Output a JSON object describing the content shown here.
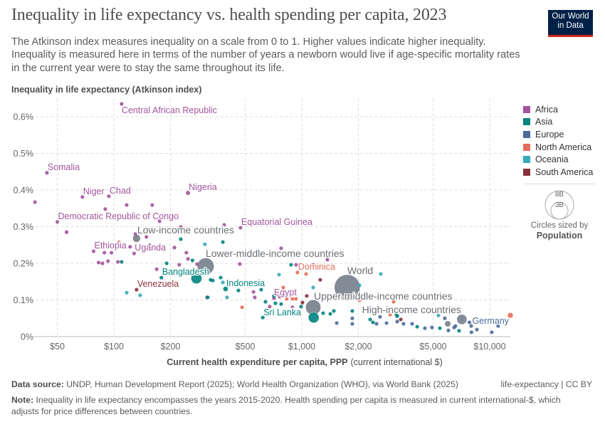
{
  "header": {
    "title": "Inequality in life expectancy vs. health spending per capita, 2023",
    "subtitle": "The Atkinson index measures inequality on a scale from 0 to 1. Higher values indicate higher inequality. Inequality is measured here in terms of the number of years a newborn would live if age-specific mortality rates in the current year were to stay the same throughout its life.",
    "logo": "Our World in Data"
  },
  "legend": {
    "items": [
      {
        "label": "Africa",
        "color": "#a2559c"
      },
      {
        "label": "Asia",
        "color": "#00847e"
      },
      {
        "label": "Europe",
        "color": "#4c6a9c"
      },
      {
        "label": "North America",
        "color": "#e56e5a"
      },
      {
        "label": "Oceania",
        "color": "#38aaba"
      },
      {
        "label": "South America",
        "color": "#883039"
      }
    ],
    "size_big": "8B",
    "size_small": "3B",
    "size_caption": "Circles sized by",
    "size_variable": "Population"
  },
  "footer": {
    "source_label": "Data source:",
    "source": "UNDP, Human Development Report (2025); World Health Organization (WHO), via World Bank (2025)",
    "license": "life-expectancy | CC BY",
    "note_label": "Note:",
    "note": "Inequality in life expectancy encompasses the years 2015-2020. Health spending per capita is measured in current international-$, which adjusts for price differences between countries."
  },
  "chart_data": {
    "type": "scatter",
    "title": "Inequality in life expectancy vs. health spending per capita, 2023",
    "ylabel": "Inequality in life expectancy (Atkinson index)",
    "xlabel_bold": "Current health expenditure per capita, PPP",
    "xlabel_unit": "(current international $)",
    "xscale": "log",
    "xlim": [
      34,
      12900
    ],
    "ylim": [
      0,
      0.65
    ],
    "grid": true,
    "legend_position": "right",
    "aggregate_color": "#6d7785",
    "x_ticks": [
      {
        "v": 50,
        "label": "$50"
      },
      {
        "v": 100,
        "label": "$100"
      },
      {
        "v": 200,
        "label": "$200"
      },
      {
        "v": 500,
        "label": "$500"
      },
      {
        "v": 1000,
        "label": "$1,000"
      },
      {
        "v": 2000,
        "label": "$2,000"
      },
      {
        "v": 5000,
        "label": "$5,000"
      },
      {
        "v": 10000,
        "label": "$10,000"
      }
    ],
    "y_ticks": [
      {
        "v": 0,
        "label": "0%"
      },
      {
        "v": 0.1,
        "label": "0.1%"
      },
      {
        "v": 0.2,
        "label": "0.2%"
      },
      {
        "v": 0.3,
        "label": "0.3%"
      },
      {
        "v": 0.4,
        "label": "0.4%"
      },
      {
        "v": 0.5,
        "label": "0.5%"
      },
      {
        "v": 0.6,
        "label": "0.6%"
      }
    ],
    "points": [
      {
        "label": "World",
        "region": "",
        "x": 1745,
        "y": 0.134,
        "pop": 8100
      },
      {
        "label": "Lower-middle-income countries",
        "region": "",
        "x": 308,
        "y": 0.192,
        "pop": 3400
      },
      {
        "label": "Upper-middle-income countries",
        "region": "",
        "x": 1150,
        "y": 0.08,
        "pop": 2800
      },
      {
        "label": "",
        "region": "Asia",
        "x": 275,
        "y": 0.159,
        "pop": 1430
      },
      {
        "label": "",
        "region": "Asia",
        "x": 1157,
        "y": 0.052,
        "pop": 1410
      },
      {
        "label": "High-income countries",
        "region": "",
        "x": 7110,
        "y": 0.047,
        "pop": 1250
      },
      {
        "label": "Low-income countries",
        "region": "",
        "x": 132,
        "y": 0.268,
        "pop": 740
      },
      {
        "label": "",
        "region": "",
        "x": 5980,
        "y": 0.035,
        "pop": 450
      },
      {
        "label": "",
        "region": "North America",
        "x": 12880,
        "y": 0.058,
        "pop": 335
      },
      {
        "label": "Indonesia",
        "region": "Asia",
        "x": 393,
        "y": 0.13,
        "pop": 280
      },
      {
        "label": "Nigeria",
        "region": "Africa",
        "x": 248,
        "y": 0.392,
        "pop": 230
      },
      {
        "label": "Bangladesh",
        "region": "Asia",
        "x": 179,
        "y": 0.161,
        "pop": 173
      },
      {
        "label": "Central African Republic",
        "region": "Africa",
        "x": 110,
        "y": 0.635
      },
      {
        "label": "Somalia",
        "region": "Africa",
        "x": 44,
        "y": 0.447
      },
      {
        "label": "Niger",
        "region": "Africa",
        "x": 68,
        "y": 0.381
      },
      {
        "label": "Chad",
        "region": "Africa",
        "x": 94,
        "y": 0.383
      },
      {
        "label": "Democratic Republic of Congo",
        "region": "Africa",
        "x": 50,
        "y": 0.313
      },
      {
        "label": "Equatorial Guinea",
        "region": "Africa",
        "x": 472,
        "y": 0.297
      },
      {
        "label": "Ethiopia",
        "region": "Africa",
        "x": 78,
        "y": 0.233
      },
      {
        "label": "Uganda",
        "region": "Africa",
        "x": 128,
        "y": 0.227
      },
      {
        "label": "Egypt",
        "region": "Africa",
        "x": 711,
        "y": 0.105
      },
      {
        "label": "Venezuela",
        "region": "South America",
        "x": 132,
        "y": 0.128
      },
      {
        "label": "Dominica",
        "region": "North America",
        "x": 948,
        "y": 0.175
      },
      {
        "label": "Sri Lanka",
        "region": "Asia",
        "x": 620,
        "y": 0.052
      },
      {
        "label": "Germany",
        "region": "Europe",
        "x": 7800,
        "y": 0.039
      },
      {
        "label": "",
        "region": "Africa",
        "x": 38,
        "y": 0.367
      },
      {
        "label": "",
        "region": "Africa",
        "x": 117,
        "y": 0.359
      },
      {
        "label": "",
        "region": "Africa",
        "x": 160,
        "y": 0.359
      },
      {
        "label": "",
        "region": "Africa",
        "x": 90,
        "y": 0.348
      },
      {
        "label": "",
        "region": "Africa",
        "x": 175,
        "y": 0.315
      },
      {
        "label": "",
        "region": "Africa",
        "x": 227,
        "y": 0.299
      },
      {
        "label": "",
        "region": "Africa",
        "x": 386,
        "y": 0.305
      },
      {
        "label": "",
        "region": "Africa",
        "x": 56,
        "y": 0.285
      },
      {
        "label": "",
        "region": "Africa",
        "x": 130,
        "y": 0.28
      },
      {
        "label": "",
        "region": "Africa",
        "x": 149,
        "y": 0.272
      },
      {
        "label": "",
        "region": "Africa",
        "x": 155,
        "y": 0.249
      },
      {
        "label": "",
        "region": "Africa",
        "x": 122,
        "y": 0.245
      },
      {
        "label": "",
        "region": "Africa",
        "x": 210,
        "y": 0.243
      },
      {
        "label": "",
        "region": "Africa",
        "x": 776,
        "y": 0.241
      },
      {
        "label": "",
        "region": "Africa",
        "x": 97,
        "y": 0.229
      },
      {
        "label": "",
        "region": "Africa",
        "x": 89,
        "y": 0.229
      },
      {
        "label": "",
        "region": "Africa",
        "x": 243,
        "y": 0.229
      },
      {
        "label": "",
        "region": "Africa",
        "x": 248,
        "y": 0.212
      },
      {
        "label": "",
        "region": "Africa",
        "x": 83,
        "y": 0.202
      },
      {
        "label": "",
        "region": "Africa",
        "x": 87,
        "y": 0.2
      },
      {
        "label": "",
        "region": "Africa",
        "x": 93,
        "y": 0.206
      },
      {
        "label": "",
        "region": "Africa",
        "x": 105,
        "y": 0.204
      },
      {
        "label": "",
        "region": "Africa",
        "x": 223,
        "y": 0.196
      },
      {
        "label": "",
        "region": "Africa",
        "x": 277,
        "y": 0.198
      },
      {
        "label": "",
        "region": "Africa",
        "x": 468,
        "y": 0.198
      },
      {
        "label": "",
        "region": "Africa",
        "x": 932,
        "y": 0.196
      },
      {
        "label": "",
        "region": "Africa",
        "x": 1368,
        "y": 0.21
      },
      {
        "label": "",
        "region": "Africa",
        "x": 1150,
        "y": 0.196
      },
      {
        "label": "",
        "region": "Africa",
        "x": 169,
        "y": 0.184
      },
      {
        "label": "",
        "region": "Africa",
        "x": 553,
        "y": 0.122
      },
      {
        "label": "",
        "region": "Africa",
        "x": 313,
        "y": 0.107
      },
      {
        "label": "",
        "region": "Africa",
        "x": 562,
        "y": 0.107
      },
      {
        "label": "",
        "region": "Africa",
        "x": 675,
        "y": 0.082
      },
      {
        "label": "",
        "region": "Africa",
        "x": 892,
        "y": 0.08
      },
      {
        "label": "",
        "region": "Africa",
        "x": 763,
        "y": 0.109
      },
      {
        "label": "",
        "region": "Asia",
        "x": 227,
        "y": 0.266
      },
      {
        "label": "",
        "region": "Asia",
        "x": 380,
        "y": 0.258
      },
      {
        "label": "",
        "region": "Asia",
        "x": 262,
        "y": 0.208
      },
      {
        "label": "",
        "region": "Asia",
        "x": 110,
        "y": 0.204
      },
      {
        "label": "",
        "region": "Asia",
        "x": 191,
        "y": 0.2
      },
      {
        "label": "",
        "region": "Asia",
        "x": 877,
        "y": 0.196
      },
      {
        "label": "",
        "region": "Asia",
        "x": 327,
        "y": 0.155
      },
      {
        "label": "",
        "region": "Asia",
        "x": 336,
        "y": 0.153
      },
      {
        "label": "",
        "region": "Asia",
        "x": 370,
        "y": 0.161
      },
      {
        "label": "",
        "region": "Asia",
        "x": 460,
        "y": 0.126
      },
      {
        "label": "",
        "region": "Asia",
        "x": 608,
        "y": 0.128
      },
      {
        "label": "",
        "region": "Asia",
        "x": 316,
        "y": 0.107
      },
      {
        "label": "",
        "region": "Asia",
        "x": 711,
        "y": 0.111
      },
      {
        "label": "",
        "region": "Asia",
        "x": 641,
        "y": 0.095
      },
      {
        "label": "",
        "region": "Asia",
        "x": 724,
        "y": 0.091
      },
      {
        "label": "",
        "region": "Asia",
        "x": 776,
        "y": 0.089
      },
      {
        "label": "",
        "region": "Asia",
        "x": 991,
        "y": 0.082
      },
      {
        "label": "",
        "region": "Asia",
        "x": 1299,
        "y": 0.064
      },
      {
        "label": "",
        "region": "Asia",
        "x": 1418,
        "y": 0.062
      },
      {
        "label": "",
        "region": "Asia",
        "x": 1481,
        "y": 0.07
      },
      {
        "label": "",
        "region": "Asia",
        "x": 1857,
        "y": 0.07
      },
      {
        "label": "",
        "region": "Asia",
        "x": 2311,
        "y": 0.047
      },
      {
        "label": "",
        "region": "Asia",
        "x": 2392,
        "y": 0.039
      },
      {
        "label": "",
        "region": "Asia",
        "x": 3220,
        "y": 0.056
      },
      {
        "label": "",
        "region": "Asia",
        "x": 3190,
        "y": 0.06
      },
      {
        "label": "",
        "region": "Asia",
        "x": 4110,
        "y": 0.027
      },
      {
        "label": "",
        "region": "Asia",
        "x": 5430,
        "y": 0.023
      },
      {
        "label": "",
        "region": "Asia",
        "x": 6870,
        "y": 0.016
      },
      {
        "label": "",
        "region": "Europe",
        "x": 1535,
        "y": 0.037
      },
      {
        "label": "",
        "region": "Europe",
        "x": 1857,
        "y": 0.05
      },
      {
        "label": "",
        "region": "Europe",
        "x": 1857,
        "y": 0.035
      },
      {
        "label": "",
        "region": "Europe",
        "x": 2500,
        "y": 0.035
      },
      {
        "label": "",
        "region": "Europe",
        "x": 2610,
        "y": 0.054
      },
      {
        "label": "",
        "region": "Europe",
        "x": 2825,
        "y": 0.037
      },
      {
        "label": "",
        "region": "Europe",
        "x": 3220,
        "y": 0.041
      },
      {
        "label": "",
        "region": "Europe",
        "x": 3480,
        "y": 0.035
      },
      {
        "label": "",
        "region": "Europe",
        "x": 3865,
        "y": 0.035
      },
      {
        "label": "",
        "region": "Europe",
        "x": 4520,
        "y": 0.023
      },
      {
        "label": "",
        "region": "Europe",
        "x": 4930,
        "y": 0.025
      },
      {
        "label": "",
        "region": "Europe",
        "x": 5770,
        "y": 0.05
      },
      {
        "label": "",
        "region": "Europe",
        "x": 6030,
        "y": 0.017
      },
      {
        "label": "",
        "region": "Europe",
        "x": 6470,
        "y": 0.025
      },
      {
        "label": "",
        "region": "Europe",
        "x": 6580,
        "y": 0.029
      },
      {
        "label": "",
        "region": "Europe",
        "x": 7970,
        "y": 0.029
      },
      {
        "label": "",
        "region": "Europe",
        "x": 8550,
        "y": 0.019
      },
      {
        "label": "",
        "region": "Europe",
        "x": 8000,
        "y": 0.012
      },
      {
        "label": "",
        "region": "Europe",
        "x": 10260,
        "y": 0.012
      },
      {
        "label": "",
        "region": "Europe",
        "x": 11090,
        "y": 0.029
      },
      {
        "label": "",
        "region": "North America",
        "x": 107,
        "y": 0.258
      },
      {
        "label": "",
        "region": "North America",
        "x": 481,
        "y": 0.08
      },
      {
        "label": "",
        "region": "North America",
        "x": 1054,
        "y": 0.171
      },
      {
        "label": "",
        "region": "North America",
        "x": 797,
        "y": 0.134
      },
      {
        "label": "",
        "region": "North America",
        "x": 832,
        "y": 0.103
      },
      {
        "label": "",
        "region": "North America",
        "x": 892,
        "y": 0.103
      },
      {
        "label": "",
        "region": "North America",
        "x": 932,
        "y": 0.103
      },
      {
        "label": "",
        "region": "North America",
        "x": 2028,
        "y": 0.099
      },
      {
        "label": "",
        "region": "North America",
        "x": 2950,
        "y": 0.06
      },
      {
        "label": "",
        "region": "North America",
        "x": 3080,
        "y": 0.095
      },
      {
        "label": "",
        "region": "Oceania",
        "x": 305,
        "y": 0.252
      },
      {
        "label": "",
        "region": "Oceania",
        "x": 138,
        "y": 0.113
      },
      {
        "label": "",
        "region": "Oceania",
        "x": 117,
        "y": 0.12
      },
      {
        "label": "",
        "region": "Oceania",
        "x": 400,
        "y": 0.107
      },
      {
        "label": "",
        "region": "Oceania",
        "x": 757,
        "y": 0.169
      },
      {
        "label": "",
        "region": "Oceania",
        "x": 1150,
        "y": 0.134
      },
      {
        "label": "",
        "region": "Oceania",
        "x": 2632,
        "y": 0.171
      },
      {
        "label": "",
        "region": "Oceania",
        "x": 2028,
        "y": 0.14
      },
      {
        "label": "",
        "region": "Oceania",
        "x": 380,
        "y": 0.148
      },
      {
        "label": "",
        "region": "Oceania",
        "x": 5335,
        "y": 0.058
      },
      {
        "label": "",
        "region": "South America",
        "x": 1009,
        "y": 0.093
      },
      {
        "label": "",
        "region": "South America",
        "x": 1063,
        "y": 0.111
      },
      {
        "label": "",
        "region": "South America",
        "x": 1254,
        "y": 0.155
      },
      {
        "label": "",
        "region": "South America",
        "x": 1734,
        "y": 0.103
      },
      {
        "label": "",
        "region": "South America",
        "x": 3365,
        "y": 0.047
      }
    ]
  }
}
